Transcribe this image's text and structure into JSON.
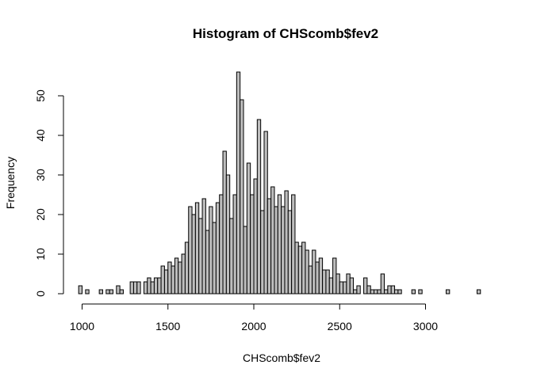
{
  "chart_data": {
    "type": "bar",
    "title": "Histogram of CHScomb$fev2",
    "xlabel": "CHScomb$fev2",
    "ylabel": "Frequency",
    "bin_width": 20,
    "bin_start": 980,
    "xlim": [
      980,
      3340
    ],
    "ylim": [
      0,
      56
    ],
    "x_ticks": [
      1000,
      1500,
      2000,
      2500,
      3000
    ],
    "y_ticks": [
      0,
      10,
      20,
      30,
      40,
      50
    ],
    "values": [
      2,
      0,
      1,
      0,
      0,
      0,
      1,
      0,
      1,
      1,
      0,
      2,
      1,
      0,
      0,
      3,
      3,
      3,
      0,
      3,
      4,
      3,
      4,
      4,
      7,
      6,
      8,
      7,
      9,
      8,
      10,
      13,
      22,
      20,
      23,
      19,
      24,
      16,
      22,
      18,
      23,
      25,
      36,
      30,
      19,
      25,
      56,
      49,
      17,
      33,
      25,
      29,
      44,
      21,
      41,
      24,
      27,
      22,
      25,
      22,
      26,
      21,
      25,
      13,
      12,
      13,
      11,
      7,
      11,
      8,
      9,
      6,
      6,
      4,
      9,
      5,
      3,
      3,
      5,
      4,
      1,
      2,
      0,
      4,
      2,
      1,
      1,
      1,
      5,
      1,
      2,
      2,
      1,
      1,
      0,
      0,
      0,
      1,
      0,
      1,
      0,
      0,
      0,
      0,
      0,
      0,
      0,
      1,
      0,
      0,
      0,
      0,
      0,
      0,
      0,
      0,
      1,
      0
    ],
    "grid": false,
    "bar_fill": "#bebebe",
    "bar_stroke": "#000000"
  }
}
